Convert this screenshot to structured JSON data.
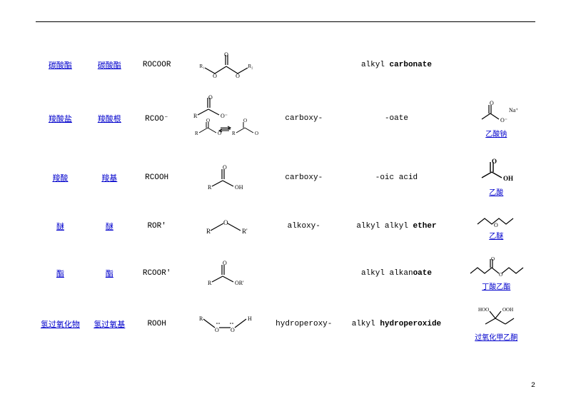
{
  "rows": [
    {
      "class_zh": "碳酸酯",
      "group_zh": "碳酸酯",
      "formula": "ROCOOR",
      "prefix": "",
      "suffix_html": "alkyl <b>carbonate</b>",
      "example_zh": ""
    },
    {
      "class_zh": "羧酸盐",
      "group_zh": "羧酸根",
      "formula": "RCOO⁻",
      "prefix": "carboxy-",
      "suffix_html": "-oate",
      "example_zh": "乙酸钠"
    },
    {
      "class_zh": "羧酸",
      "group_zh": "羧基",
      "formula": "RCOOH",
      "prefix": "carboxy-",
      "suffix_html": "-oic acid",
      "example_zh": "乙酸"
    },
    {
      "class_zh": "醚",
      "group_zh": "醚",
      "formula": "ROR'",
      "prefix": "alkoxy-",
      "suffix_html": "alkyl alkyl <b>ether</b>",
      "example_zh": "乙醚"
    },
    {
      "class_zh": "酯",
      "group_zh": "酯",
      "formula": "RCOOR'",
      "prefix": "",
      "suffix_html": "alkyl alkan<b>oate</b>",
      "example_zh": "丁酸乙酯"
    },
    {
      "class_zh": "氢过氧化物",
      "group_zh": "氢过氧基",
      "formula": "ROOH",
      "prefix": "hydroperoxy-",
      "suffix_html": "alkyl <b>hydroperoxide</b>",
      "example_zh": "过氧化甲乙酮"
    }
  ],
  "page_number": "2"
}
